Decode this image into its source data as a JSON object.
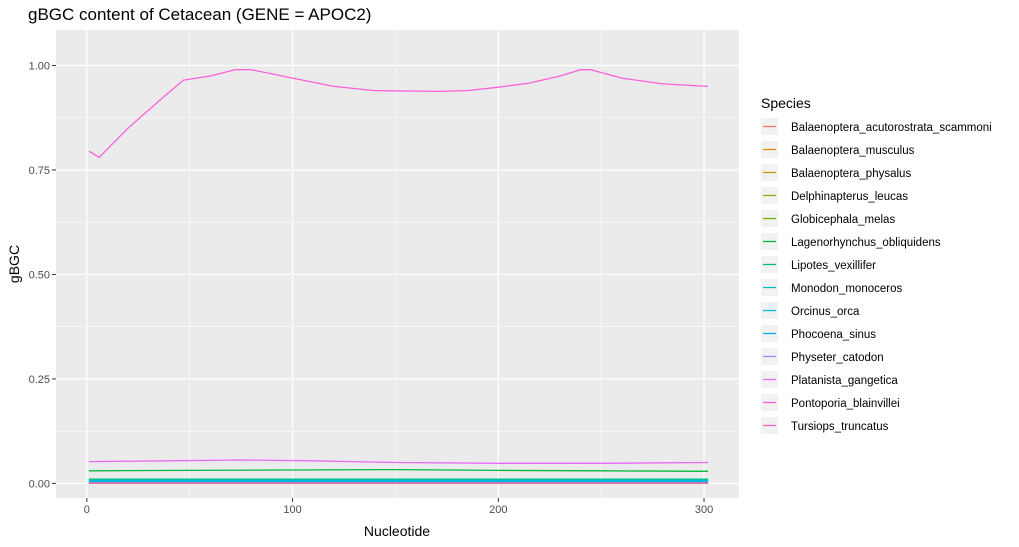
{
  "chart_data": {
    "type": "line",
    "title": "gBGC content of Cetacean (GENE = APOC2)",
    "xlabel": "Nucleotide",
    "ylabel": "gBGC",
    "xlim": [
      -15,
      317
    ],
    "ylim": [
      -0.035,
      1.085
    ],
    "x_ticks": [
      0,
      100,
      200,
      300
    ],
    "x_tick_labels": [
      "0",
      "100",
      "200",
      "300"
    ],
    "y_ticks": [
      0,
      0.25,
      0.5,
      0.75,
      1.0
    ],
    "y_tick_labels": [
      "0.00",
      "0.25",
      "0.50",
      "0.75",
      "1.00"
    ],
    "grid": true,
    "legend_position": "right",
    "legend_title": "Species",
    "series": [
      {
        "name": "Balaenoptera_acutorostrata_scammoni",
        "color": "#F8766D",
        "x": [
          1,
          302
        ],
        "y": [
          0.0,
          0.0
        ]
      },
      {
        "name": "Balaenoptera_musculus",
        "color": "#E58700",
        "x": [
          1,
          302
        ],
        "y": [
          0.0,
          0.0
        ]
      },
      {
        "name": "Balaenoptera_physalus",
        "color": "#C99800",
        "x": [
          1,
          302
        ],
        "y": [
          0.0,
          0.0
        ]
      },
      {
        "name": "Delphinapterus_leucas",
        "color": "#A3A500",
        "x": [
          1,
          302
        ],
        "y": [
          0.003,
          0.003
        ]
      },
      {
        "name": "Globicephala_melas",
        "color": "#6BB100",
        "x": [
          1,
          302
        ],
        "y": [
          0.005,
          0.005
        ]
      },
      {
        "name": "Lagenorhynchus_obliquidens",
        "color": "#00BA38",
        "x": [
          1,
          50,
          100,
          150,
          200,
          250,
          302
        ],
        "y": [
          0.03,
          0.031,
          0.032,
          0.033,
          0.031,
          0.03,
          0.029
        ]
      },
      {
        "name": "Lipotes_vexillifer",
        "color": "#00BF7D",
        "x": [
          1,
          302
        ],
        "y": [
          0.01,
          0.01
        ]
      },
      {
        "name": "Monodon_monoceros",
        "color": "#00C0AF",
        "x": [
          1,
          302
        ],
        "y": [
          0.008,
          0.008
        ]
      },
      {
        "name": "Orcinus_orca",
        "color": "#00BCD8",
        "x": [
          1,
          302
        ],
        "y": [
          0.006,
          0.006
        ]
      },
      {
        "name": "Phocoena_sinus",
        "color": "#00B0F6",
        "x": [
          1,
          302
        ],
        "y": [
          0.004,
          0.004
        ]
      },
      {
        "name": "Physeter_catodon",
        "color": "#9590FF",
        "x": [
          1,
          302
        ],
        "y": [
          0.001,
          0.001
        ]
      },
      {
        "name": "Platanista_gangetica",
        "color": "#E76BF3",
        "x": [
          1,
          40,
          75,
          110,
          150,
          200,
          250,
          302
        ],
        "y": [
          0.052,
          0.054,
          0.056,
          0.054,
          0.05,
          0.048,
          0.048,
          0.05
        ]
      },
      {
        "name": "Pontoporia_blainvillei",
        "color": "#FA62DB",
        "x": [
          1,
          6,
          20,
          35,
          47,
          60,
          72,
          80,
          100,
          120,
          140,
          170,
          185,
          200,
          215,
          230,
          240,
          245,
          260,
          280,
          302
        ],
        "y": [
          0.795,
          0.78,
          0.85,
          0.915,
          0.965,
          0.975,
          0.99,
          0.99,
          0.97,
          0.95,
          0.94,
          0.938,
          0.94,
          0.948,
          0.958,
          0.975,
          0.99,
          0.99,
          0.97,
          0.956,
          0.95
        ]
      },
      {
        "name": "Tursiops_truncatus",
        "color": "#FF62BC",
        "x": [
          1,
          302
        ],
        "y": [
          0.001,
          0.001
        ]
      }
    ]
  }
}
